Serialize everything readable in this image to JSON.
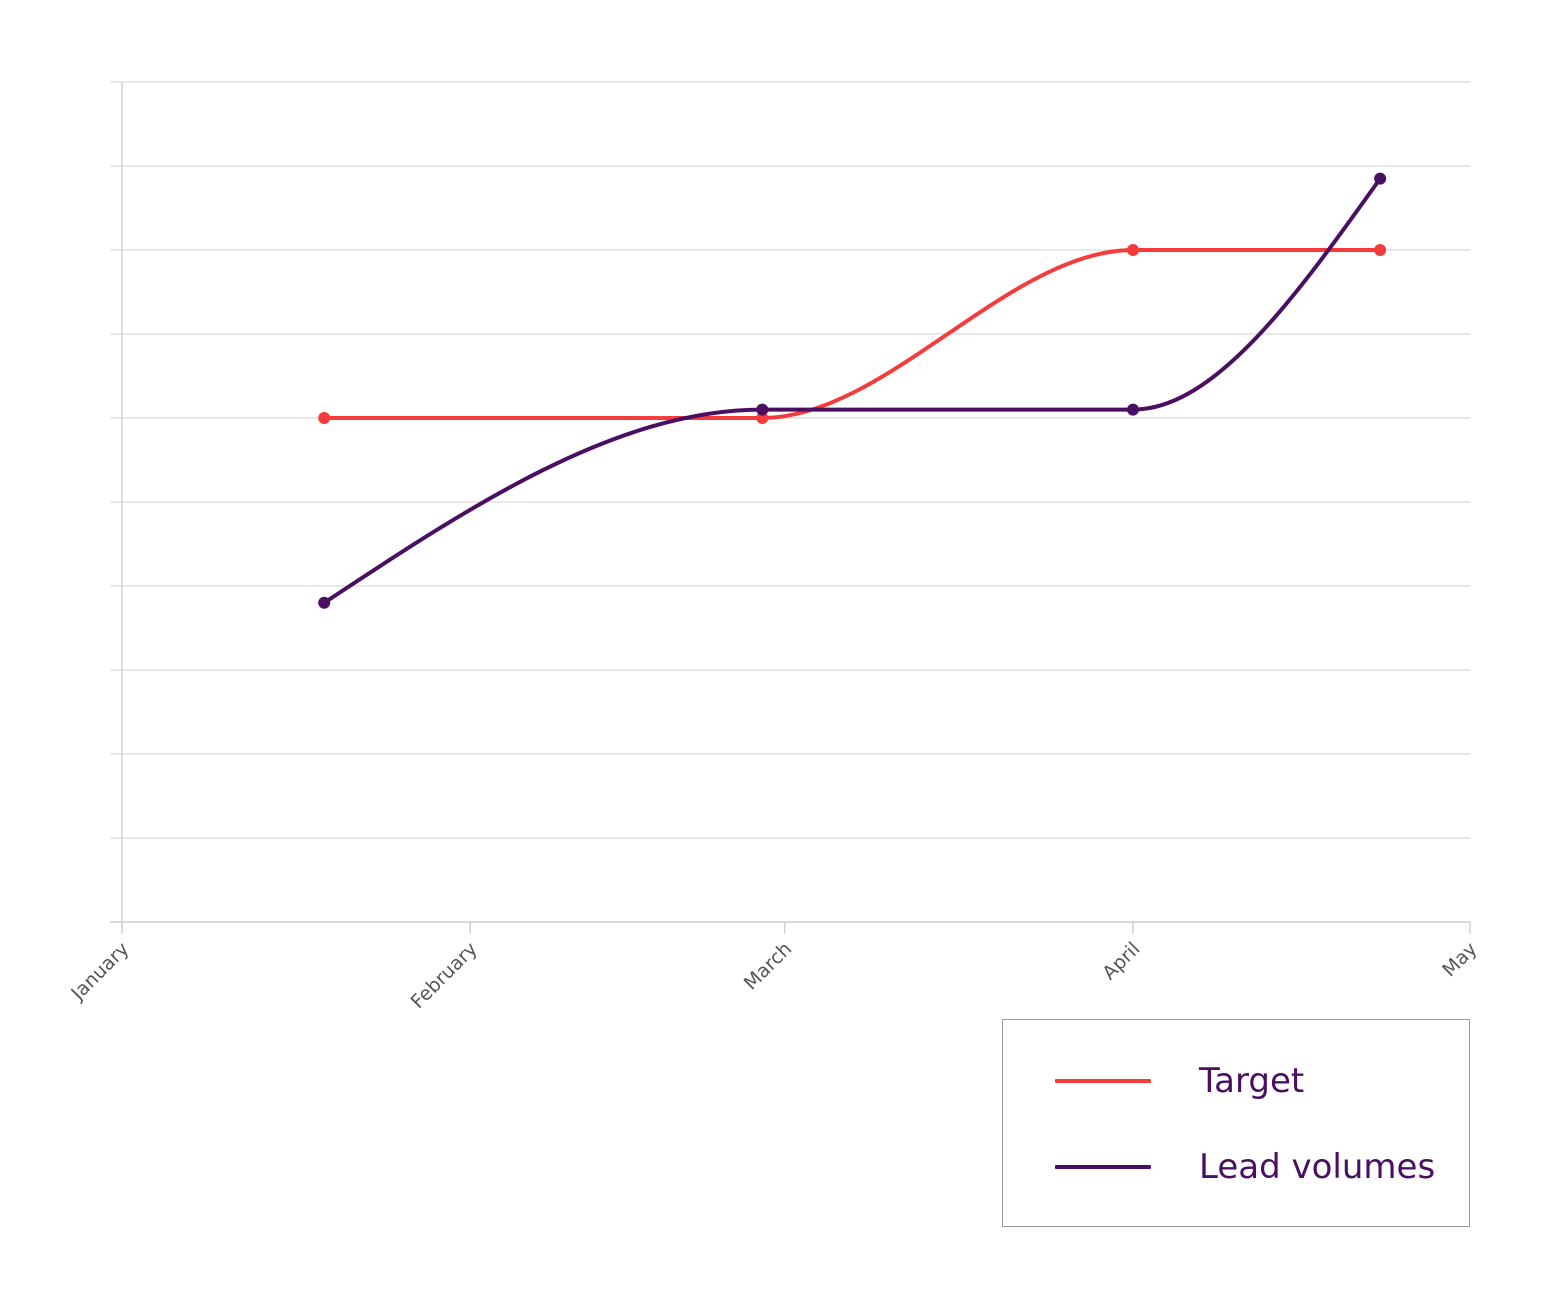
{
  "chart_data": {
    "type": "line",
    "x_axis": {
      "type": "date",
      "range": [
        "2023-01-01",
        "2023-05-01"
      ],
      "tick_labels": [
        {
          "label": "January",
          "date": "2023-01-01"
        },
        {
          "label": "February",
          "date": "2023-02-01"
        },
        {
          "label": "March",
          "date": "2023-03-01"
        },
        {
          "label": "April",
          "date": "2023-04-01"
        },
        {
          "label": "May",
          "date": "2023-05-01"
        }
      ]
    },
    "y_axis": {
      "range": [
        0,
        10
      ],
      "gridlines": 10,
      "tick_labels_shown": false
    },
    "grid": true,
    "curve": "smooth",
    "legend_placement": "bottom-right",
    "x": [
      "2023-01-19",
      "2023-02-27",
      "2023-04-01",
      "2023-04-23"
    ],
    "series": [
      {
        "name": "Target",
        "color": "#f43c3c",
        "values": [
          6,
          6,
          8,
          8
        ]
      },
      {
        "name": "Lead volumes",
        "color": "#4a0e62",
        "values": [
          3.8,
          6.1,
          6.1,
          8.85
        ]
      }
    ]
  },
  "colors": {
    "grid": "#e0e0e0",
    "axis": "#d2d2d2",
    "tick_text": "#555555",
    "legend_border": "#9a9a9a"
  }
}
